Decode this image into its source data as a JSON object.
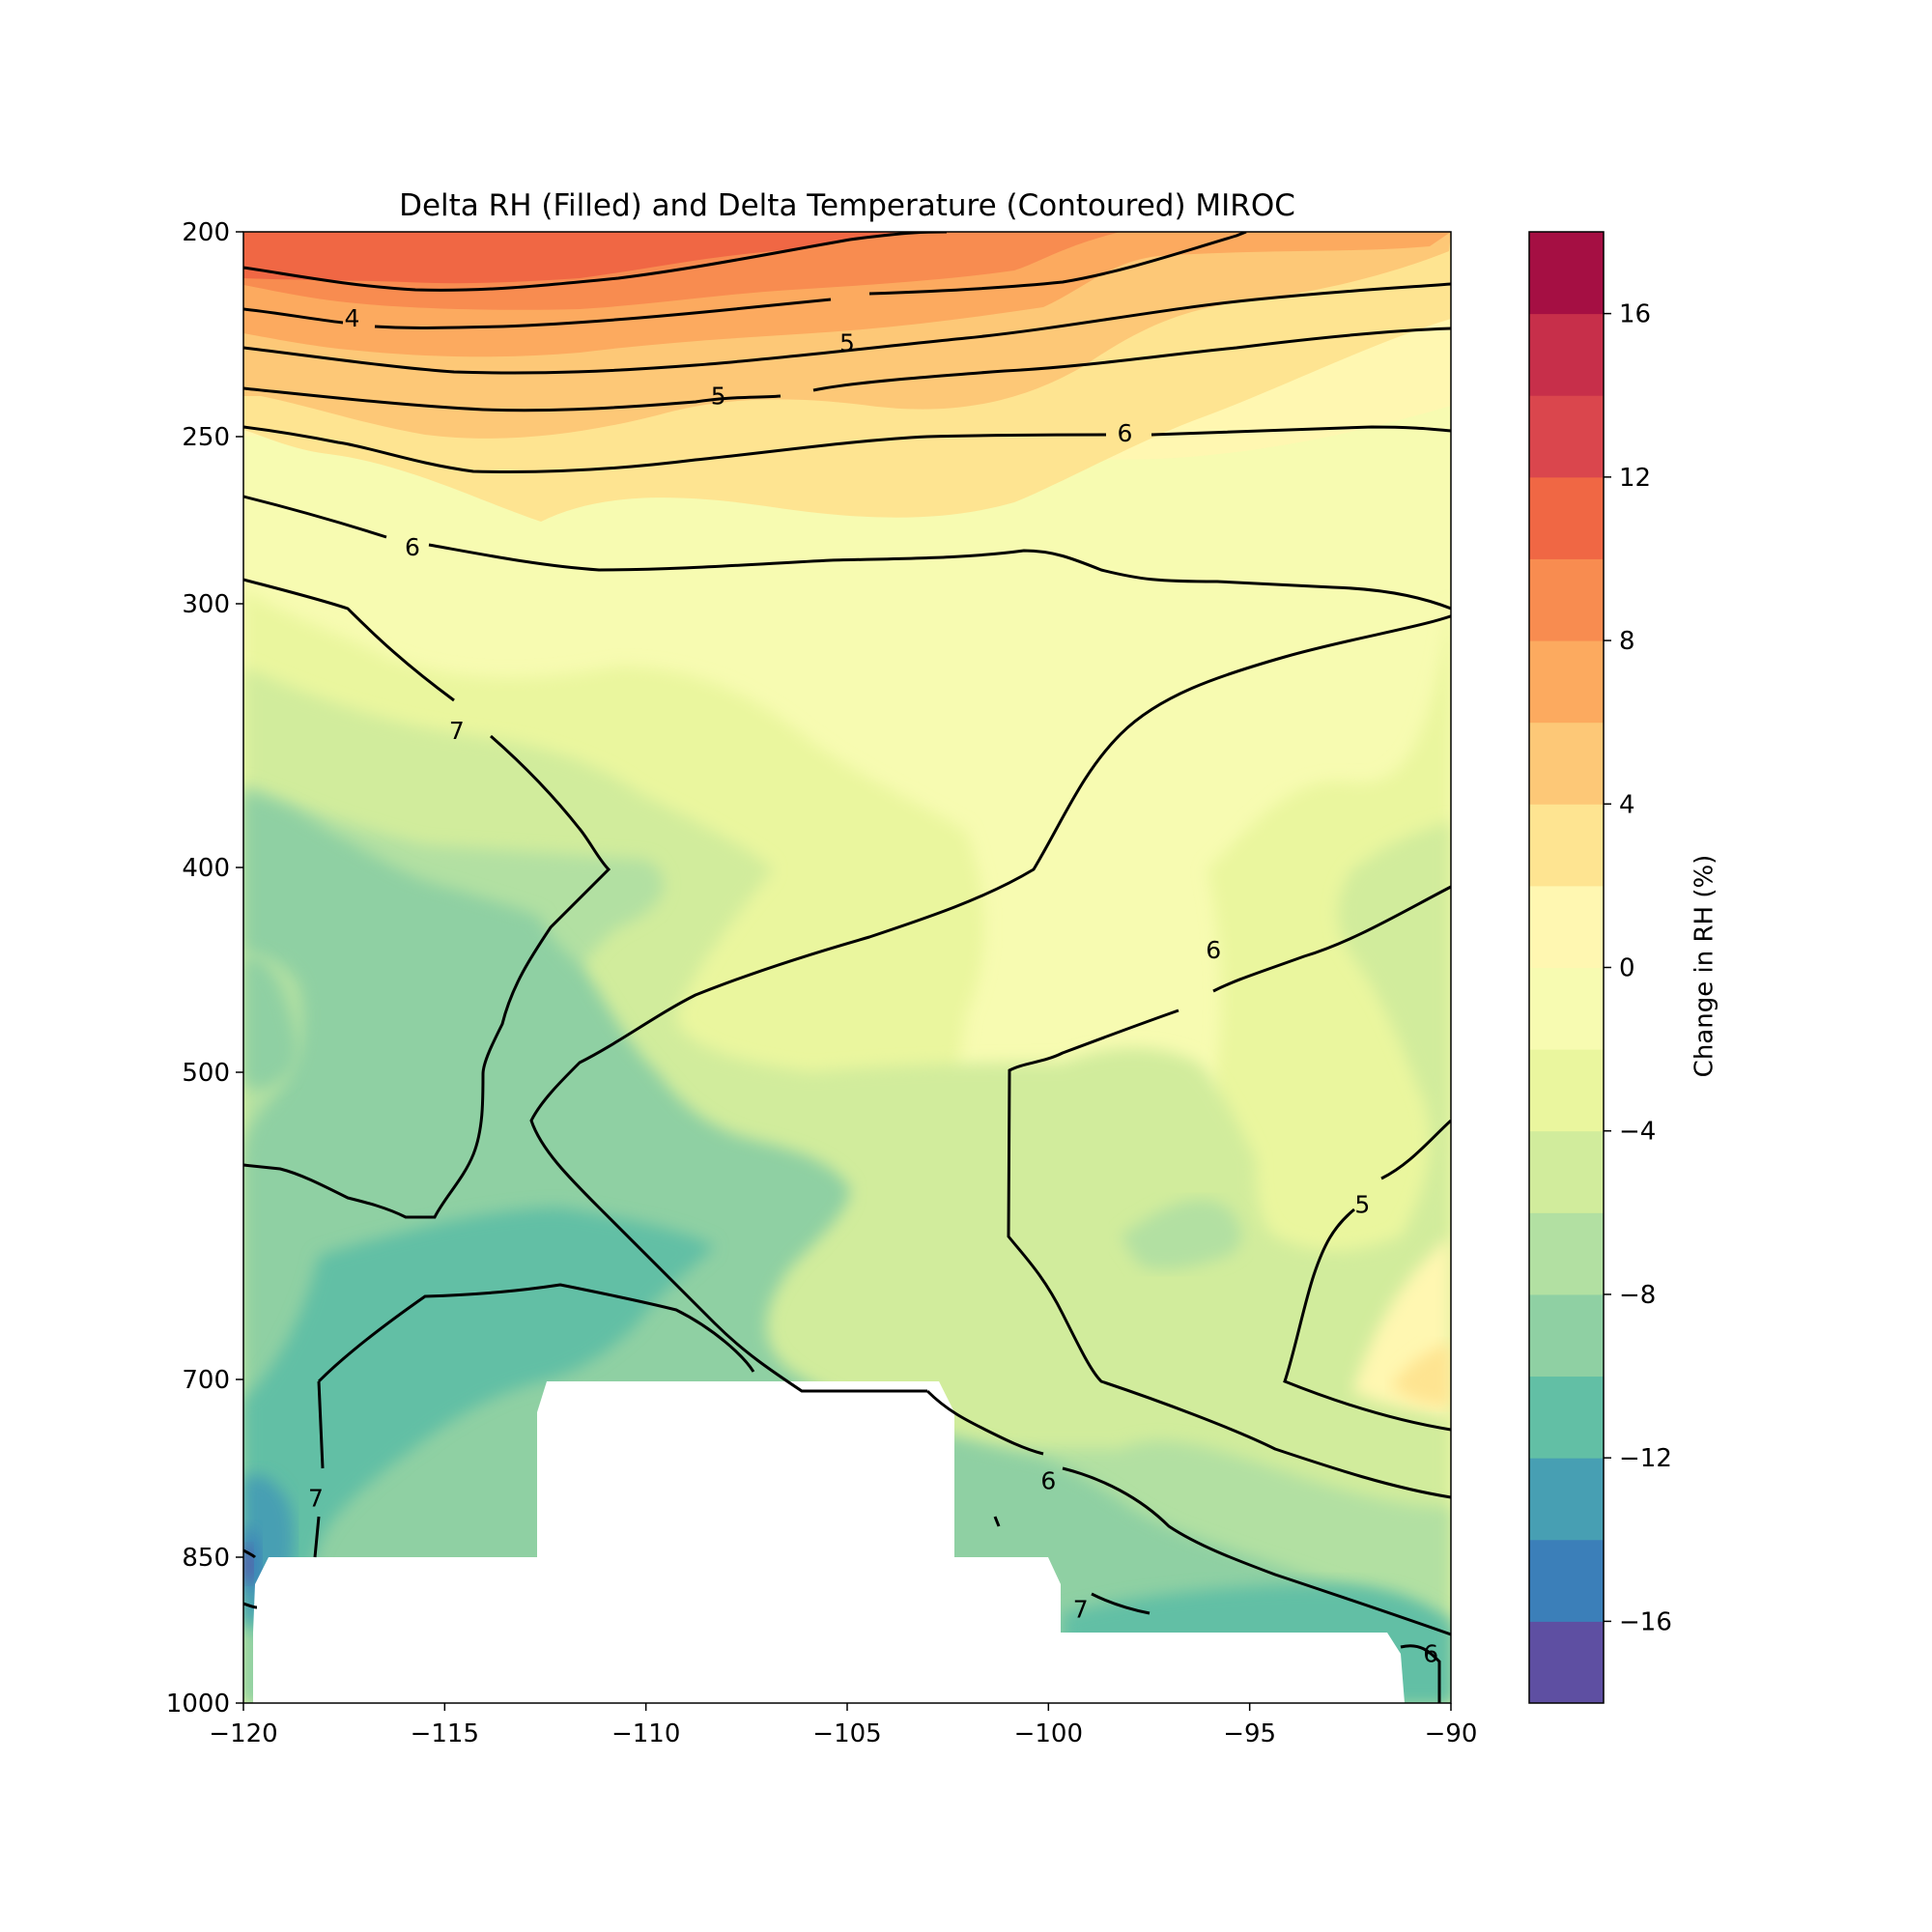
{
  "chart_data": {
    "type": "contourf",
    "title": "Delta RH (Filled) and Delta Temperature (Contoured) MIROC",
    "xlabel": "",
    "ylabel": "",
    "x_range": [
      -120,
      -90
    ],
    "y_range": [
      1000,
      200
    ],
    "x_ticks": [
      -120,
      -115,
      -110,
      -105,
      -100,
      -95,
      -90
    ],
    "x_tick_labels": [
      "−120",
      "−115",
      "−110",
      "−105",
      "−100",
      "−95",
      "−90"
    ],
    "y_ticks": [
      200,
      250,
      300,
      400,
      500,
      700,
      850,
      1000
    ],
    "y_tick_labels": [
      "200",
      "250",
      "300",
      "400",
      "500",
      "700",
      "850",
      "1000"
    ],
    "colorbar": {
      "label": "Change in RH (%)",
      "levels": [
        -18,
        -16,
        -14,
        -12,
        -10,
        -8,
        -6,
        -4,
        -2,
        0,
        2,
        4,
        6,
        8,
        10,
        12,
        14,
        16,
        18
      ],
      "colors": [
        "#5e4fa2",
        "#3b7fb9",
        "#479fb3",
        "#62bfa5",
        "#8fd0a3",
        "#b2e0a2",
        "#d1ec9c",
        "#eaf69e",
        "#f7fbb1",
        "#fff7b1",
        "#fee491",
        "#fdc877",
        "#fcaa5f",
        "#f88c50",
        "#f06744",
        "#da464d",
        "#c72f4a",
        "#a50f43"
      ],
      "ticks": [
        -16,
        -12,
        -8,
        -4,
        0,
        4,
        8,
        12,
        16
      ],
      "tick_labels": [
        "−16",
        "−12",
        "−8",
        "−4",
        "0",
        "4",
        "8",
        "12",
        "16"
      ]
    },
    "filled_rh": {
      "description_levels_by_pressure": [
        {
          "pressure": 200,
          "rh_west": 10,
          "rh_center": 10,
          "rh_east": 4
        },
        {
          "pressure": 250,
          "rh_west": 4,
          "rh_center": 4,
          "rh_east": 0
        },
        {
          "pressure": 300,
          "rh_west": -3,
          "rh_center": -1,
          "rh_east": -3
        },
        {
          "pressure": 400,
          "rh_west": -7,
          "rh_center": -3,
          "rh_east": -3
        },
        {
          "pressure": 500,
          "rh_west": -9,
          "rh_center": -5,
          "rh_east": -5
        },
        {
          "pressure": 700,
          "rh_west": -11,
          "rh_center": -5,
          "rh_east": 2
        },
        {
          "pressure": 850,
          "rh_west": -15,
          "rh_center": -5,
          "rh_east": -9
        }
      ]
    },
    "contour_labels": [
      {
        "value": "4",
        "x": -117.3,
        "p": 221
      },
      {
        "value": "5",
        "x": -105.0,
        "p": 227
      },
      {
        "value": "5",
        "x": -108.2,
        "p": 240
      },
      {
        "value": "6",
        "x": -98.1,
        "p": 249
      },
      {
        "value": "6",
        "x": -115.8,
        "p": 283
      },
      {
        "value": "7",
        "x": -114.7,
        "p": 348
      },
      {
        "value": "6",
        "x": -95.9,
        "p": 440
      },
      {
        "value": "5",
        "x": -92.2,
        "p": 586
      },
      {
        "value": "6",
        "x": -100.0,
        "p": 785
      },
      {
        "value": "7",
        "x": -118.2,
        "p": 800
      },
      {
        "value": "7",
        "x": -99.2,
        "p": 903
      },
      {
        "value": "6",
        "x": -90.5,
        "p": 949
      }
    ],
    "masked_regions": [
      {
        "x": [
          -112.8,
          -102.6
        ],
        "p_top": 700
      },
      {
        "x": [
          -119.6,
          -99.8
        ],
        "p_top": 850
      },
      {
        "x": [
          -119.7,
          -91.3
        ],
        "p_top": 930
      }
    ]
  }
}
